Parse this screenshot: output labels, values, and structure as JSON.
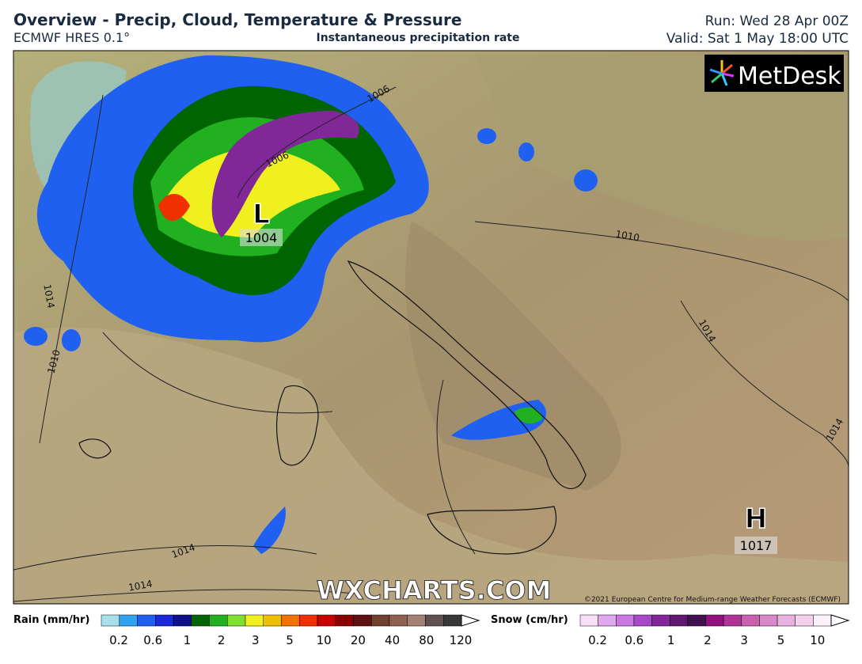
{
  "header": {
    "title": "Overview - Precip, Cloud, Temperature & Pressure",
    "model": "ECMWF HRES 0.1°",
    "product": "Instantaneous precipitation rate",
    "run": "Run: Wed 28 Apr 00Z",
    "valid": "Valid: Sat 1 May 18:00 UTC"
  },
  "map": {
    "isobar_labels": [
      1006,
      1006,
      1010,
      1010,
      1014,
      1014,
      1014,
      1014,
      1014
    ],
    "centers": [
      {
        "symbol": "L",
        "pressure": 1004
      },
      {
        "symbol": "H",
        "pressure": 1017
      }
    ],
    "watermark": "WXCHARTS.COM",
    "copyright": "©2021 European Centre for Medium-range Weather Forecasts (ECMWF)",
    "logo": "MetDesk"
  },
  "legend": {
    "rain": {
      "label": "Rain (mm/hr)",
      "ticks": [
        0.2,
        0.6,
        1,
        2,
        3,
        5,
        10,
        20,
        40,
        80,
        120
      ],
      "colors": [
        "#a8e0ea",
        "#30a0f0",
        "#2060f0",
        "#1a28d8",
        "#101088",
        "#006400",
        "#20b020",
        "#80e030",
        "#f0f020",
        "#f0c000",
        "#f07000",
        "#f03000",
        "#c80000",
        "#8a0000",
        "#601010",
        "#704030",
        "#906050",
        "#a08070",
        "#605050",
        "#383838"
      ]
    },
    "snow": {
      "label": "Snow (cm/hr)",
      "ticks": [
        0.2,
        0.6,
        1,
        2,
        3,
        5,
        10
      ],
      "colors": [
        "#f8e0f8",
        "#e0a8ec",
        "#c878e0",
        "#a848c8",
        "#802898",
        "#601870",
        "#401050",
        "#901080",
        "#b03498",
        "#c860b0",
        "#d888c8",
        "#e8b0dc",
        "#f4d0ec",
        "#fff0fa"
      ]
    }
  }
}
